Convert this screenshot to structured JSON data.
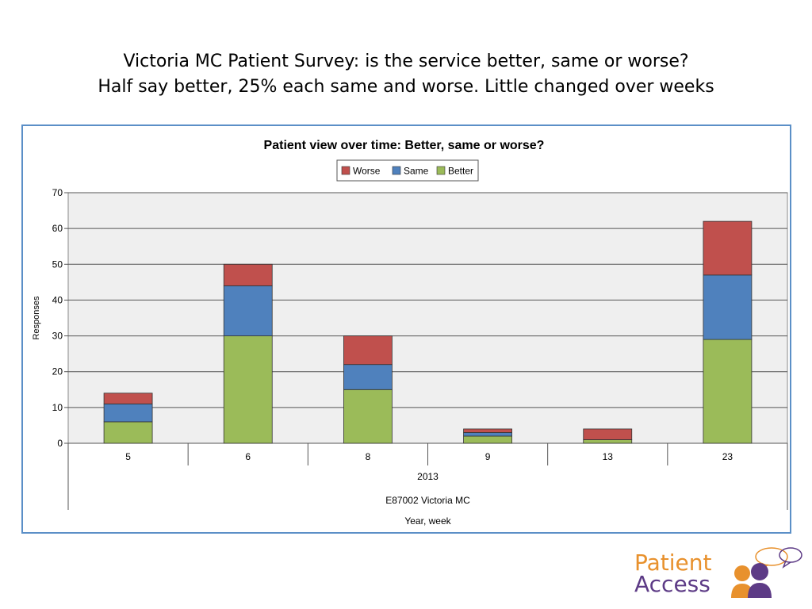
{
  "slide": {
    "title_line1": "Victoria MC Patient Survey:  is the service better, same or worse?",
    "title_line2": "Half say better, 25% each same and worse.  Little changed over weeks"
  },
  "logo": {
    "line1": "Patient",
    "line2": "Access"
  },
  "colors": {
    "worse": "#c0504d",
    "same": "#4f81bd",
    "better": "#9bbb59",
    "frame": "#5b8fc7",
    "plot_bg": "#efefef"
  },
  "chart_data": {
    "type": "bar",
    "stacked": true,
    "title": "Patient view over time:  Better, same or worse?",
    "categories": [
      "5",
      "6",
      "8",
      "9",
      "13",
      "23"
    ],
    "series": [
      {
        "name": "Better",
        "values": [
          6,
          30,
          15,
          2,
          1,
          29
        ]
      },
      {
        "name": "Same",
        "values": [
          5,
          14,
          7,
          1,
          0,
          18
        ]
      },
      {
        "name": "Worse",
        "values": [
          3,
          6,
          8,
          1,
          3,
          15
        ]
      }
    ],
    "legend_order": [
      "Worse",
      "Same",
      "Better"
    ],
    "legend_position": "top-center",
    "ylabel": "Responses",
    "ylim": [
      0,
      70
    ],
    "yticks": [
      0,
      10,
      20,
      30,
      40,
      50,
      60,
      70
    ],
    "grid": true,
    "x_group_labels": [
      "2013",
      "E87002 Victoria MC",
      "Year, week"
    ]
  }
}
